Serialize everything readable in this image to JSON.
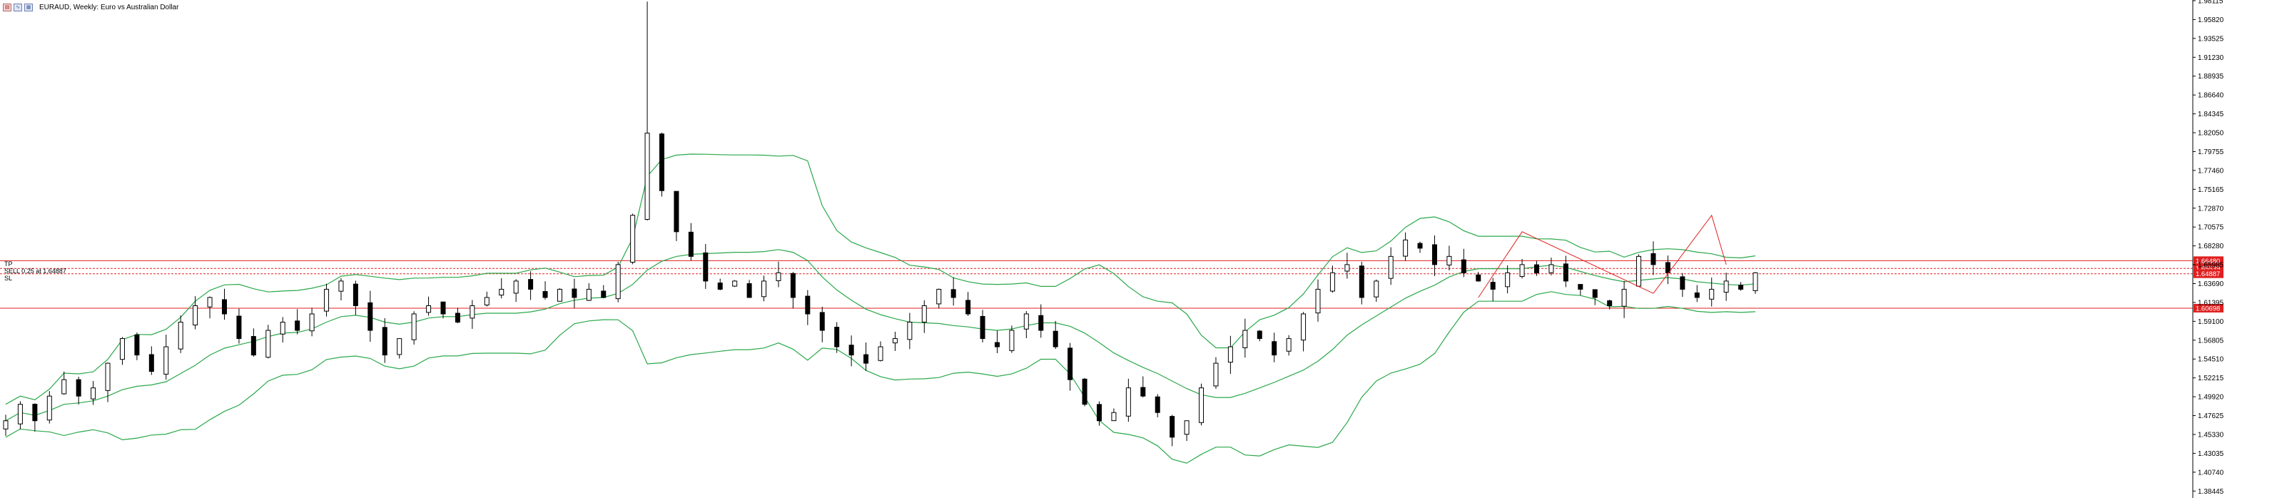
{
  "window": {
    "title": "EURAUD, Weekly:  Euro vs Australian Dollar",
    "icons": [
      "chart-icon",
      "indicator-icon",
      "template-icon"
    ]
  },
  "trade_labels": {
    "tp": "TP",
    "sell": "SELL 0.25 at 1.64887",
    "sl": "SL"
  },
  "colors": {
    "background": "#ffffff",
    "candle_bull": "#000000",
    "candle_bear": "#000000",
    "bollinger": "#2aa84a",
    "level_line": "#e02020",
    "trendline": "#e02020",
    "axis": "#000000"
  },
  "chart_data": {
    "type": "candlestick",
    "symbol": "EURAUD",
    "timeframe": "Weekly",
    "ylim": [
      1.376,
      1.982
    ],
    "y_ticks": [
      "1.98115",
      "1.95820",
      "1.93525",
      "1.91230",
      "1.88935",
      "1.86640",
      "1.84345",
      "1.82050",
      "1.79755",
      "1.77460",
      "1.75165",
      "1.72870",
      "1.70575",
      "1.68280",
      "1.65985",
      "1.63690",
      "1.61395",
      "1.59100",
      "1.56805",
      "1.54510",
      "1.52215",
      "1.49920",
      "1.47625",
      "1.45330",
      "1.43035",
      "1.40740",
      "1.38445"
    ],
    "y_tick_values": [
      1.98115,
      1.9582,
      1.93525,
      1.9123,
      1.88935,
      1.8664,
      1.84345,
      1.8205,
      1.79755,
      1.7746,
      1.75165,
      1.7287,
      1.70575,
      1.6828,
      1.65985,
      1.6369,
      1.61395,
      1.591,
      1.56805,
      1.5451,
      1.52215,
      1.4992,
      1.47625,
      1.4533,
      1.43035,
      1.4074,
      1.38445
    ],
    "price_levels": [
      {
        "name": "tp",
        "price": 1.6648,
        "label": "1.66480"
      },
      {
        "name": "sell",
        "price": 1.65539,
        "label": "1.65539"
      },
      {
        "name": "current",
        "price": 1.64887,
        "label": "1.64887"
      },
      {
        "name": "sl",
        "price": 1.60698,
        "label": "1.60698"
      }
    ],
    "close_path": [
      1.47,
      1.49,
      1.47,
      1.5,
      1.52,
      1.5,
      1.51,
      1.54,
      1.57,
      1.55,
      1.53,
      1.56,
      1.59,
      1.61,
      1.62,
      1.6,
      1.57,
      1.55,
      1.58,
      1.59,
      1.58,
      1.6,
      1.63,
      1.64,
      1.61,
      1.58,
      1.55,
      1.57,
      1.6,
      1.61,
      1.6,
      1.59,
      1.61,
      1.62,
      1.63,
      1.64,
      1.63,
      1.62,
      1.63,
      1.62,
      1.63,
      1.62,
      1.66,
      1.72,
      1.82,
      1.75,
      1.7,
      1.67,
      1.64,
      1.63,
      1.64,
      1.62,
      1.64,
      1.65,
      1.62,
      1.6,
      1.58,
      1.56,
      1.55,
      1.54,
      1.56,
      1.57,
      1.59,
      1.61,
      1.63,
      1.62,
      1.6,
      1.57,
      1.56,
      1.58,
      1.6,
      1.58,
      1.56,
      1.52,
      1.49,
      1.47,
      1.48,
      1.51,
      1.5,
      1.48,
      1.45,
      1.47,
      1.51,
      1.54,
      1.56,
      1.58,
      1.57,
      1.55,
      1.57,
      1.6,
      1.63,
      1.65,
      1.66,
      1.62,
      1.64,
      1.67,
      1.69,
      1.68,
      1.66,
      1.67,
      1.65,
      1.64,
      1.63,
      1.65,
      1.66,
      1.65,
      1.66,
      1.64,
      1.63,
      1.62,
      1.61,
      1.63,
      1.67,
      1.66,
      1.65,
      1.63,
      1.62,
      1.63,
      1.64,
      1.63,
      1.65
    ]
  }
}
